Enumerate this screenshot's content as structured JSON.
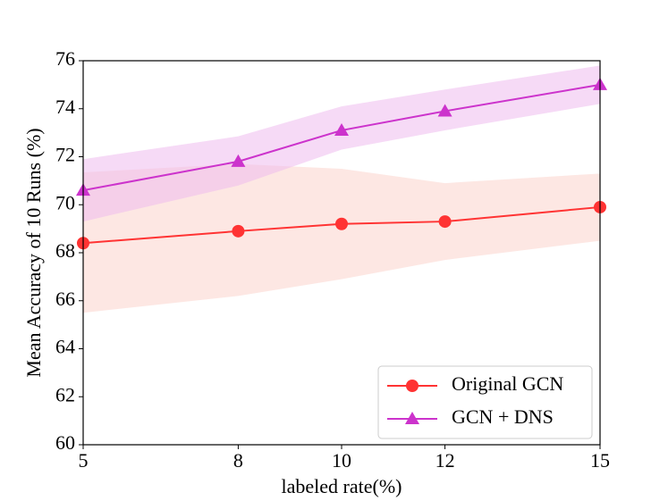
{
  "chart_data": {
    "type": "line",
    "xlabel": "labeled rate(%)",
    "ylabel": "Mean Accuracy of 10 Runs (%)",
    "x": [
      5,
      8,
      10,
      12,
      15
    ],
    "xlim": [
      5,
      15
    ],
    "xticks": [
      5,
      8,
      10,
      12,
      15
    ],
    "ylim": [
      60,
      76
    ],
    "yticks": [
      60,
      62,
      64,
      66,
      68,
      70,
      72,
      74,
      76
    ],
    "legend": "lower right",
    "series": [
      {
        "name": "Original GCN",
        "color": "#ff3333",
        "band_color": "#fbd3cc",
        "marker": "circle",
        "values": [
          68.4,
          68.9,
          69.2,
          69.3,
          69.9
        ],
        "upper": [
          71.35,
          71.7,
          71.5,
          70.9,
          71.3
        ],
        "lower": [
          65.5,
          66.2,
          66.9,
          67.7,
          68.5
        ]
      },
      {
        "name": "GCN + DNS",
        "color": "#cc33cc",
        "band_color": "#eebcee",
        "marker": "triangle",
        "values": [
          70.6,
          71.8,
          73.1,
          73.9,
          75.0
        ],
        "upper": [
          71.9,
          72.85,
          74.1,
          74.8,
          75.8
        ],
        "lower": [
          69.3,
          70.8,
          72.3,
          73.1,
          74.2
        ]
      }
    ]
  }
}
